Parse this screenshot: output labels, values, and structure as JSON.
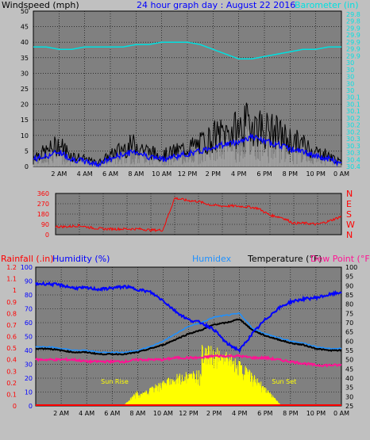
{
  "colors": {
    "background": "#c0c0c0",
    "plot_bg": "#808080",
    "wind_gust": "#000000",
    "wind_avg": "#0000ff",
    "wind_fill": "#a0a0a0",
    "barometer": "#00e0e0",
    "direction": "#ff0000",
    "humidity": "#0000ff",
    "humidex": "#1e90ff",
    "temperature": "#000000",
    "dew_point": "#ff1493",
    "rainfall": "#ff0000",
    "solar": "#ffff00"
  },
  "header": {
    "windspeed_label": "Windspeed (mph)",
    "title": "24 hour graph day : August 22 2016",
    "barometer_label": "Barometer (in)"
  },
  "bottom_header": {
    "rainfall": "Rainfall (.in)",
    "humidity": "Humidity (%)",
    "humidex": "Humidex",
    "temperature": "Temperature (°F)",
    "dew_point": "Dew Point (°F)"
  },
  "annotations": {
    "sun_rise": "Sun Rise",
    "sun_set": "Sun Set"
  },
  "time_labels": [
    "2 AM",
    "4 AM",
    "6 AM",
    "8 AM",
    "10 AM",
    "12 PM",
    "2 PM",
    "4 PM",
    "6 PM",
    "8 PM",
    "10 PM",
    "0 AM"
  ],
  "chart_data": [
    {
      "type": "line",
      "title": "24 hour graph day : August 22 2016",
      "xlabel": "",
      "ylabel": "Windspeed (mph)",
      "y2label": "Barometer (in)",
      "x": [
        "0",
        "1",
        "2",
        "3",
        "4",
        "5",
        "6",
        "7",
        "8",
        "9",
        "10",
        "11",
        "12",
        "13",
        "14",
        "15",
        "16",
        "17",
        "18",
        "19",
        "20",
        "21",
        "22",
        "23",
        "24"
      ],
      "ylim": [
        0,
        50
      ],
      "y_ticks": [
        "0",
        "5",
        "10",
        "15",
        "20",
        "25",
        "30",
        "35",
        "40",
        "45",
        "50"
      ],
      "y2lim": [
        29.75,
        30.4
      ],
      "y2_ticks": [
        "29.8",
        "29.8",
        "29.9",
        "29.9",
        "29.9",
        "29.9",
        "29.9",
        "30",
        "30",
        "30",
        "30",
        "30",
        "30.1",
        "30.1",
        "30.1",
        "30.2",
        "30.2",
        "30.2",
        "30.3",
        "30.3",
        "30.3",
        "30.4",
        "30.4"
      ],
      "series": [
        {
          "name": "Windspeed (mph)",
          "values": [
            3,
            4,
            6,
            3,
            2,
            1,
            3,
            5,
            6,
            4,
            3,
            4,
            5,
            6,
            8,
            9,
            10,
            12,
            10,
            9,
            7,
            6,
            4,
            3,
            1
          ]
        },
        {
          "name": "Barometer (in)",
          "values": [
            30.25,
            30.25,
            30.24,
            30.24,
            30.25,
            30.25,
            30.25,
            30.25,
            30.26,
            30.26,
            30.27,
            30.27,
            30.27,
            30.26,
            30.24,
            30.22,
            30.2,
            30.2,
            30.21,
            30.22,
            30.23,
            30.24,
            30.24,
            30.25,
            30.25
          ]
        }
      ]
    },
    {
      "type": "line",
      "ylabel": "Wind direction",
      "x": [
        "0",
        "1",
        "2",
        "3",
        "4",
        "5",
        "6",
        "7",
        "8",
        "9",
        "10",
        "11",
        "12",
        "13",
        "14",
        "15",
        "16",
        "17",
        "18",
        "19",
        "20",
        "21",
        "22",
        "23",
        "24"
      ],
      "ylim": [
        0,
        360
      ],
      "y_ticks": [
        "0",
        "90",
        "180",
        "270",
        "360"
      ],
      "y2_ticks": [
        "N",
        "W",
        "S",
        "E",
        "N"
      ],
      "series": [
        {
          "name": "Wind direction",
          "values": [
            70,
            70,
            80,
            60,
            50,
            50,
            50,
            50,
            40,
            40,
            320,
            300,
            290,
            260,
            250,
            250,
            245,
            230,
            170,
            150,
            100,
            100,
            90,
            120,
            160
          ]
        }
      ]
    },
    {
      "type": "line",
      "x": [
        "0",
        "1",
        "2",
        "3",
        "4",
        "5",
        "6",
        "7",
        "8",
        "9",
        "10",
        "11",
        "12",
        "13",
        "14",
        "15",
        "16",
        "17",
        "18",
        "19",
        "20",
        "21",
        "22",
        "23",
        "24"
      ],
      "ylim_temperature": [
        25,
        100
      ],
      "ylim_humidity": [
        0,
        100
      ],
      "ylim_rain": [
        0,
        1.2
      ],
      "temperature_ticks": [
        "25",
        "30",
        "35",
        "40",
        "45",
        "50",
        "55",
        "60",
        "65",
        "70",
        "75",
        "80",
        "85",
        "90",
        "95",
        "100"
      ],
      "humidity_ticks": [
        "0",
        "10",
        "20",
        "30",
        "40",
        "50",
        "60",
        "70",
        "80",
        "90",
        "100"
      ],
      "rain_ticks": [
        "0",
        "0.1",
        "0.2",
        "0.3",
        "0.4",
        "0.5",
        "0.6",
        "0.7",
        "0.8",
        "0.9",
        "1",
        "1.1",
        "1.2"
      ],
      "series": [
        {
          "name": "Humidity (%)",
          "values": [
            88,
            88,
            87,
            85,
            85,
            84,
            85,
            86,
            84,
            82,
            76,
            68,
            62,
            60,
            55,
            45,
            40,
            52,
            62,
            70,
            75,
            77,
            78,
            80,
            82
          ]
        },
        {
          "name": "Temperature (°F)",
          "values": [
            56,
            56,
            55,
            54,
            54,
            53,
            53,
            53,
            54,
            56,
            58,
            61,
            64,
            66,
            69,
            70,
            72,
            66,
            63,
            61,
            59,
            58,
            56,
            55,
            55
          ]
        },
        {
          "name": "Humidex",
          "values": [
            57,
            57,
            56,
            55,
            55,
            54,
            54,
            54,
            55,
            57,
            60,
            64,
            68,
            70,
            73,
            74,
            75,
            67,
            64,
            62,
            60,
            59,
            57,
            56,
            56
          ]
        },
        {
          "name": "Dew Point (°F)",
          "values": [
            50,
            50,
            50,
            50,
            49,
            49,
            49,
            49,
            50,
            50,
            50,
            51,
            51,
            51,
            52,
            52,
            52,
            51,
            51,
            50,
            49,
            48,
            47,
            47,
            47
          ]
        },
        {
          "name": "Rainfall (.in)",
          "values": [
            0,
            0,
            0,
            0,
            0,
            0,
            0,
            0,
            0,
            0,
            0,
            0,
            0,
            0,
            0,
            0,
            0,
            0,
            0,
            0,
            0,
            0,
            0,
            0,
            0
          ]
        }
      ]
    }
  ]
}
